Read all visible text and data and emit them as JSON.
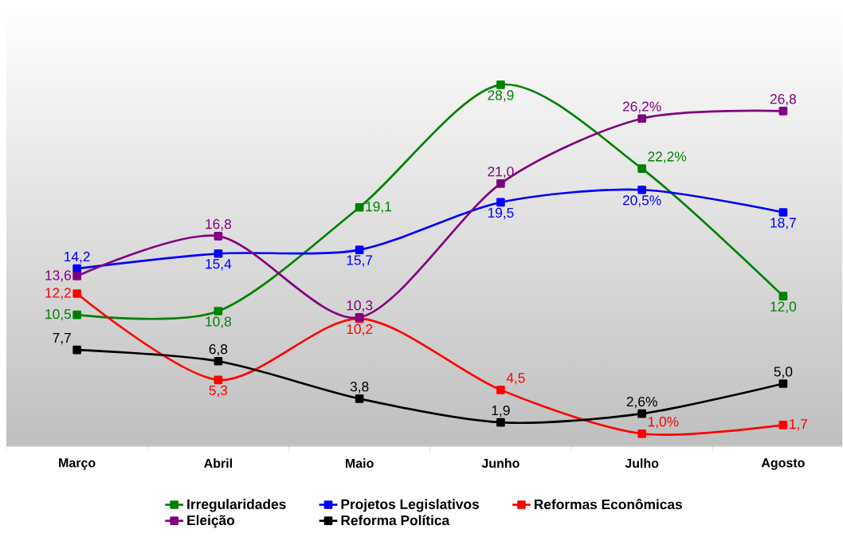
{
  "chart_data": {
    "type": "line",
    "categories": [
      "Março",
      "Abril",
      "Maio",
      "Junho",
      "Julho",
      "Agosto"
    ],
    "series": [
      {
        "name": "Irregularidades",
        "color": "#008000",
        "values": [
          10.5,
          10.8,
          19.1,
          28.9,
          22.2,
          12.0
        ],
        "value_labels": [
          "10,5",
          "10,8",
          "19,1",
          "28,9",
          "22,2%",
          "12,0"
        ]
      },
      {
        "name": "Projetos Legislativos",
        "color": "#0000ff",
        "values": [
          14.2,
          15.4,
          15.7,
          19.5,
          20.5,
          18.7
        ],
        "value_labels": [
          "14,2",
          "15,4",
          "15,7",
          "19,5",
          "20,5%",
          "18,7"
        ]
      },
      {
        "name": "Reformas Econômicas",
        "color": "#ff0000",
        "values": [
          12.2,
          5.3,
          10.2,
          4.5,
          1.0,
          1.7
        ],
        "value_labels": [
          "12,2",
          "5,3",
          "10,2",
          "4,5",
          "1,0%",
          "1,7"
        ]
      },
      {
        "name": "Eleição",
        "color": "#800080",
        "values": [
          13.6,
          16.8,
          10.3,
          21.0,
          26.2,
          26.8
        ],
        "value_labels": [
          "13,6",
          "16,8",
          "10,3",
          "21,0",
          "26,2%",
          "26,8"
        ]
      },
      {
        "name": "Reforma Política",
        "color": "#000000",
        "values": [
          7.7,
          6.8,
          3.8,
          1.9,
          2.6,
          5.0
        ],
        "value_labels": [
          "7,7",
          "6,8",
          "3,8",
          "1,9",
          "2,6%",
          "5,0"
        ]
      }
    ],
    "ylim": [
      0,
      35
    ],
    "marker": "square",
    "line_style": "solid",
    "legend": "bottom"
  }
}
